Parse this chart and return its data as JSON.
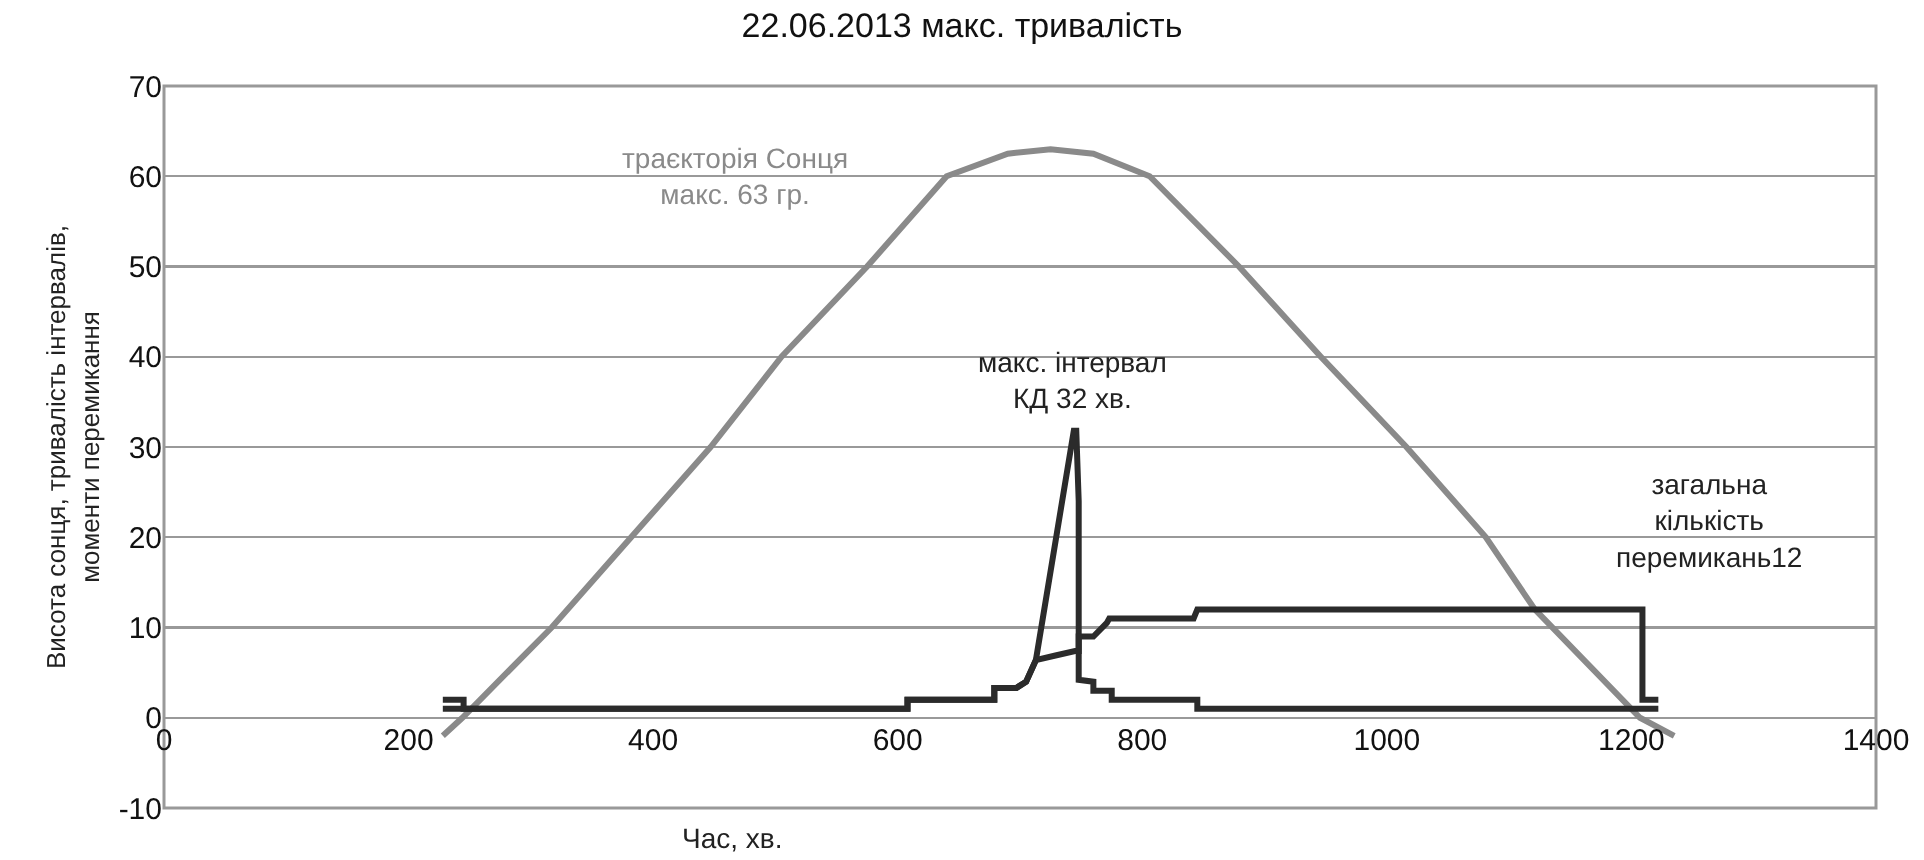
{
  "chart_data": {
    "type": "line",
    "title": "22.06.2013 макс. тривалість",
    "xlabel": "Час, хв.",
    "ylabel": "Висота сонця, тривалість інтервалів,\nмоменти перемикання",
    "xlim": [
      0,
      1400
    ],
    "xticks": [
      0,
      200,
      400,
      600,
      800,
      1000,
      1200,
      1400
    ],
    "ylim": [
      -10,
      70
    ],
    "yticks": [
      -10,
      0,
      10,
      20,
      30,
      40,
      50,
      60,
      70
    ],
    "grid": "y",
    "marker": "none",
    "line_style": "solid",
    "series": [
      {
        "color": "#8a8a8a",
        "x": [
          228,
          244,
          317,
          382,
          447,
          505,
          575,
          640,
          690,
          725,
          760,
          806,
          879,
          946,
          1016,
          1081,
          1121,
          1207,
          1235
        ],
        "values": [
          -2,
          0,
          10,
          20,
          30,
          40,
          50,
          60,
          62.5,
          63,
          62.5,
          60,
          50,
          40,
          30,
          20,
          12,
          0,
          -2
        ]
      },
      {
        "color": "#2b2b2b",
        "x": [
          228,
          245,
          245,
          608,
          608,
          679,
          679,
          697,
          705,
          713,
          744,
          746,
          748,
          748,
          760,
          760,
          775,
          775,
          845,
          845,
          1209,
          1209,
          1222
        ],
        "values": [
          2,
          2,
          1,
          1,
          2,
          2,
          3.3,
          3.3,
          4,
          6.4,
          31.8,
          31.8,
          24,
          4.2,
          4,
          3,
          3,
          2,
          2,
          1,
          1,
          1,
          1
        ]
      },
      {
        "color": "#2b2b2b",
        "x": [
          228,
          245,
          608,
          608,
          679,
          679,
          697,
          705,
          713,
          729,
          745,
          748,
          748,
          760,
          771,
          773,
          842,
          845,
          1209,
          1209,
          1222
        ],
        "values": [
          1,
          1,
          1,
          2,
          2,
          3.3,
          3.3,
          4,
          6.4,
          6.9,
          7.4,
          7.4,
          9,
          9,
          10.5,
          11,
          11,
          12,
          12,
          2,
          2
        ]
      }
    ],
    "annotations": [
      "траєкторія Сонця\nмакс. 63 гр.",
      "макс. інтервал\nКД 32 хв.",
      "загальна\nкількість\nперемикань12"
    ]
  }
}
